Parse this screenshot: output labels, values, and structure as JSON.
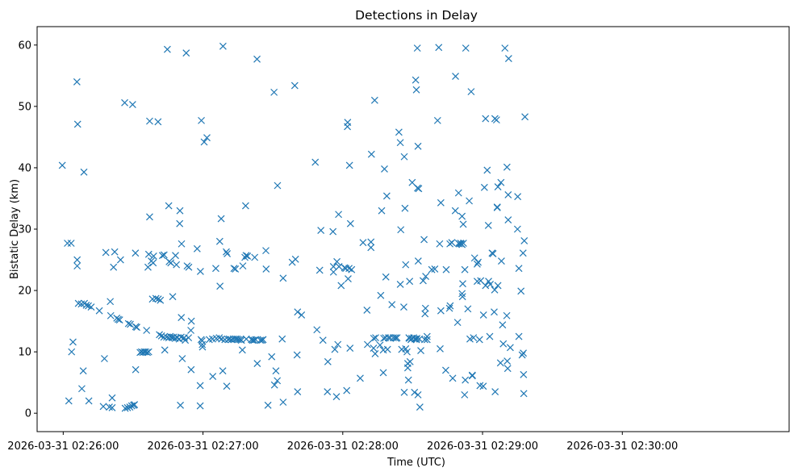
{
  "chart_data": {
    "type": "scatter",
    "title": "Detections in Delay",
    "xlabel": "Time (UTC)",
    "ylabel": "Bistatic Delay (km)",
    "marker": "x",
    "color": "#1f77b4",
    "x_unit": "time (UTC), seconds after 2026-03-31 02:25:00",
    "xlim": [
      48.8,
      371.6
    ],
    "ylim": [
      -3,
      63
    ],
    "xticks": [
      {
        "value": 60,
        "label": "2026-03-31 02:26:00"
      },
      {
        "value": 120,
        "label": "2026-03-31 02:27:00"
      },
      {
        "value": 180,
        "label": "2026-03-31 02:28:00"
      },
      {
        "value": 240,
        "label": "2026-03-31 02:29:00"
      },
      {
        "value": 300,
        "label": "2026-03-31 02:30:00"
      }
    ],
    "yticks": [
      0,
      10,
      20,
      30,
      40,
      50,
      60
    ],
    "grid": false,
    "points": [
      [
        59.6,
        40.4
      ],
      [
        61.8,
        27.7
      ],
      [
        63.4,
        27.7
      ],
      [
        62.4,
        2.0
      ],
      [
        63.6,
        10.0
      ],
      [
        64.2,
        11.6
      ],
      [
        65.9,
        54.0
      ],
      [
        66.2,
        47.1
      ],
      [
        66.0,
        25.0
      ],
      [
        66.0,
        24.0
      ],
      [
        66.5,
        17.9
      ],
      [
        67.8,
        17.8
      ],
      [
        69.1,
        17.9
      ],
      [
        69.9,
        17.6
      ],
      [
        70.8,
        17.5
      ],
      [
        72.0,
        17.3
      ],
      [
        68.0,
        4.0
      ],
      [
        68.6,
        6.9
      ],
      [
        68.9,
        39.3
      ],
      [
        71.0,
        2.0
      ],
      [
        75.5,
        16.7
      ],
      [
        77.2,
        1.1
      ],
      [
        77.7,
        8.9
      ],
      [
        78.3,
        26.2
      ],
      [
        79.8,
        1.0
      ],
      [
        81.0,
        0.9
      ],
      [
        80.2,
        18.2
      ],
      [
        80.4,
        15.9
      ],
      [
        81.0,
        2.5
      ],
      [
        81.6,
        23.8
      ],
      [
        82.1,
        26.3
      ],
      [
        83.0,
        15.5
      ],
      [
        83.6,
        15.3
      ],
      [
        84.2,
        15.2
      ],
      [
        84.6,
        25.0
      ],
      [
        86.4,
        50.6
      ],
      [
        86.6,
        0.8
      ],
      [
        87.6,
        0.9
      ],
      [
        88.0,
        14.6
      ],
      [
        88.6,
        1.0
      ],
      [
        88.8,
        14.5
      ],
      [
        89.8,
        50.3
      ],
      [
        89.4,
        1.2
      ],
      [
        90.2,
        1.3
      ],
      [
        90.6,
        1.4
      ],
      [
        91.1,
        14.1
      ],
      [
        91.1,
        7.1
      ],
      [
        91.0,
        26.1
      ],
      [
        91.6,
        14.0
      ],
      [
        93.0,
        9.9
      ],
      [
        93.6,
        10.0
      ],
      [
        94.2,
        9.9
      ],
      [
        94.8,
        10.0
      ],
      [
        95.4,
        10.0
      ],
      [
        95.8,
        13.5
      ],
      [
        96.1,
        9.9
      ],
      [
        96.7,
        10.0
      ],
      [
        96.4,
        23.8
      ],
      [
        96.7,
        25.9
      ],
      [
        97.1,
        47.6
      ],
      [
        97.1,
        32.0
      ],
      [
        97.8,
        24.8
      ],
      [
        98.3,
        18.6
      ],
      [
        98.6,
        24.5
      ],
      [
        98.8,
        25.6
      ],
      [
        99.8,
        18.7
      ],
      [
        100.7,
        47.5
      ],
      [
        100.8,
        18.6
      ],
      [
        101.3,
        12.8
      ],
      [
        102.2,
        12.6
      ],
      [
        101.7,
        18.4
      ],
      [
        102.6,
        25.7
      ],
      [
        103.2,
        12.4
      ],
      [
        103.3,
        25.8
      ],
      [
        103.6,
        10.3
      ],
      [
        104.4,
        12.4
      ],
      [
        104.7,
        59.3
      ],
      [
        105.3,
        12.3
      ],
      [
        105.3,
        33.8
      ],
      [
        105.5,
        24.7
      ],
      [
        105.9,
        12.5
      ],
      [
        106.2,
        24.5
      ],
      [
        106.5,
        12.4
      ],
      [
        107.0,
        12.3
      ],
      [
        107.0,
        19.0
      ],
      [
        107.4,
        12.4
      ],
      [
        108.2,
        25.7
      ],
      [
        108.1,
        12.2
      ],
      [
        108.6,
        24.2
      ],
      [
        108.9,
        12.3
      ],
      [
        109.8,
        12.1
      ],
      [
        110.0,
        30.9
      ],
      [
        110.1,
        33.0
      ],
      [
        110.3,
        1.3
      ],
      [
        110.6,
        12.4
      ],
      [
        110.7,
        15.6
      ],
      [
        110.8,
        27.6
      ],
      [
        111.1,
        8.9
      ],
      [
        111.6,
        12.2
      ],
      [
        112.4,
        11.9
      ],
      [
        112.0,
        12.3
      ],
      [
        112.8,
        58.7
      ],
      [
        113.2,
        24.0
      ],
      [
        113.9,
        23.8
      ],
      [
        113.8,
        12.3
      ],
      [
        114.8,
        13.5
      ],
      [
        115.0,
        15.0
      ],
      [
        114.9,
        7.1
      ],
      [
        117.5,
        26.8
      ],
      [
        118.9,
        23.1
      ],
      [
        119.3,
        47.7
      ],
      [
        118.8,
        4.5
      ],
      [
        118.8,
        1.2
      ],
      [
        119.2,
        12.0
      ],
      [
        119.6,
        11.8
      ],
      [
        119.7,
        11.2
      ],
      [
        119.8,
        10.8
      ],
      [
        120.5,
        44.2
      ],
      [
        121.7,
        44.9
      ],
      [
        122.7,
        12.0
      ],
      [
        124.1,
        12.1
      ],
      [
        124.2,
        6.0
      ],
      [
        125.5,
        23.6
      ],
      [
        125.7,
        12.2
      ],
      [
        127.2,
        28.0
      ],
      [
        127.0,
        12.3
      ],
      [
        127.3,
        20.7
      ],
      [
        127.8,
        31.7
      ],
      [
        128.0,
        12.1
      ],
      [
        128.6,
        59.8
      ],
      [
        128.5,
        6.9
      ],
      [
        129.4,
        12.0
      ],
      [
        130.0,
        26.3
      ],
      [
        130.4,
        26.0
      ],
      [
        130.2,
        4.4
      ],
      [
        130.8,
        12.0
      ],
      [
        131.3,
        12.1
      ],
      [
        132.2,
        12.0
      ],
      [
        133.3,
        23.6
      ],
      [
        133.9,
        23.5
      ],
      [
        133.0,
        12.1
      ],
      [
        133.9,
        12.1
      ],
      [
        134.6,
        12.1
      ],
      [
        135.2,
        12.0
      ],
      [
        136.0,
        12.0
      ],
      [
        136.5,
        11.9
      ],
      [
        136.9,
        10.3
      ],
      [
        137.1,
        24.0
      ],
      [
        138.5,
        25.7
      ],
      [
        138.0,
        25.4
      ],
      [
        138.3,
        33.8
      ],
      [
        138.6,
        12.1
      ],
      [
        139.1,
        25.6
      ],
      [
        140.8,
        12.0
      ],
      [
        141.3,
        11.9
      ],
      [
        141.9,
        11.9
      ],
      [
        142.6,
        12.0
      ],
      [
        143.3,
        8.1
      ],
      [
        142.2,
        25.4
      ],
      [
        143.2,
        57.7
      ],
      [
        144.6,
        11.9
      ],
      [
        145.3,
        11.9
      ],
      [
        145.8,
        12.0
      ],
      [
        147.0,
        26.5
      ],
      [
        147.1,
        23.5
      ],
      [
        147.9,
        1.3
      ],
      [
        150.5,
        52.3
      ],
      [
        149.5,
        9.2
      ],
      [
        150.7,
        4.6
      ],
      [
        151.3,
        6.9
      ],
      [
        151.9,
        5.3
      ],
      [
        152.0,
        37.1
      ],
      [
        154.0,
        12.1
      ],
      [
        154.4,
        22.0
      ],
      [
        154.4,
        1.8
      ],
      [
        158.3,
        24.6
      ],
      [
        159.7,
        25.1
      ],
      [
        159.4,
        53.4
      ],
      [
        160.6,
        16.5
      ],
      [
        160.4,
        9.5
      ],
      [
        160.6,
        3.5
      ],
      [
        162.3,
        16.0
      ],
      [
        168.2,
        40.9
      ],
      [
        168.9,
        13.6
      ],
      [
        170.1,
        23.3
      ],
      [
        170.6,
        29.8
      ],
      [
        171.5,
        11.9
      ],
      [
        173.4,
        3.5
      ],
      [
        173.6,
        8.4
      ],
      [
        175.8,
        29.6
      ],
      [
        176.0,
        23.9
      ],
      [
        176.0,
        23.0
      ],
      [
        176.6,
        10.4
      ],
      [
        177.5,
        24.7
      ],
      [
        177.3,
        2.7
      ],
      [
        177.9,
        11.2
      ],
      [
        178.2,
        32.4
      ],
      [
        178.4,
        23.9
      ],
      [
        179.3,
        20.8
      ],
      [
        180.8,
        23.7
      ],
      [
        181.3,
        23.6
      ],
      [
        181.7,
        3.7
      ],
      [
        182.1,
        47.4
      ],
      [
        182.0,
        46.7
      ],
      [
        182.7,
        23.6
      ],
      [
        182.3,
        21.9
      ],
      [
        182.9,
        40.4
      ],
      [
        183.1,
        10.6
      ],
      [
        183.3,
        30.9
      ],
      [
        183.8,
        23.4
      ],
      [
        187.5,
        5.7
      ],
      [
        188.7,
        27.8
      ],
      [
        190.4,
        16.8
      ],
      [
        190.6,
        11.2
      ],
      [
        192.1,
        27.9
      ],
      [
        192.1,
        27.0
      ],
      [
        192.3,
        42.2
      ],
      [
        193.2,
        10.6
      ],
      [
        193.3,
        12.2
      ],
      [
        193.7,
        51.0
      ],
      [
        193.9,
        9.7
      ],
      [
        194.1,
        12.3
      ],
      [
        196.0,
        11.1
      ],
      [
        196.3,
        19.2
      ],
      [
        196.7,
        33.0
      ],
      [
        197.4,
        6.6
      ],
      [
        197.4,
        10.3
      ],
      [
        197.6,
        12.2
      ],
      [
        197.9,
        39.8
      ],
      [
        198.5,
        22.2
      ],
      [
        198.9,
        35.4
      ],
      [
        198.3,
        12.3
      ],
      [
        199.2,
        10.4
      ],
      [
        199.6,
        12.3
      ],
      [
        200.3,
        12.3
      ],
      [
        201.1,
        17.7
      ],
      [
        201.7,
        12.3
      ],
      [
        202.5,
        12.3
      ],
      [
        202.9,
        12.2
      ],
      [
        203.3,
        12.3
      ],
      [
        204.1,
        45.8
      ],
      [
        204.7,
        44.1
      ],
      [
        204.9,
        29.9
      ],
      [
        204.7,
        21.0
      ],
      [
        205.3,
        10.4
      ],
      [
        206.2,
        17.3
      ],
      [
        206.7,
        33.4
      ],
      [
        206.4,
        3.4
      ],
      [
        206.4,
        41.8
      ],
      [
        207.0,
        24.2
      ],
      [
        207.0,
        10.5
      ],
      [
        207.6,
        10.0
      ],
      [
        207.9,
        8.1
      ],
      [
        207.9,
        7.4
      ],
      [
        208.2,
        5.4
      ],
      [
        208.4,
        12.3
      ],
      [
        208.6,
        12.2
      ],
      [
        208.7,
        21.5
      ],
      [
        208.9,
        8.4
      ],
      [
        209.8,
        37.6
      ],
      [
        209.3,
        12.0
      ],
      [
        209.6,
        12.2
      ],
      [
        210.4,
        12.3
      ],
      [
        211.0,
        12.1
      ],
      [
        211.3,
        54.3
      ],
      [
        211.6,
        52.7
      ],
      [
        210.8,
        3.4
      ],
      [
        211.6,
        12.0
      ],
      [
        211.8,
        12.2
      ],
      [
        212.0,
        59.5
      ],
      [
        212.1,
        36.7
      ],
      [
        212.3,
        3.0
      ],
      [
        212.3,
        43.5
      ],
      [
        212.4,
        24.8
      ],
      [
        212.6,
        36.6
      ],
      [
        212.9,
        12.1
      ],
      [
        213.1,
        1.0
      ],
      [
        213.5,
        10.2
      ],
      [
        214.5,
        21.6
      ],
      [
        214.9,
        28.3
      ],
      [
        215.5,
        17.1
      ],
      [
        215.2,
        12.0
      ],
      [
        215.3,
        16.2
      ],
      [
        215.6,
        22.3
      ],
      [
        216.2,
        12.0
      ],
      [
        216.2,
        12.5
      ],
      [
        218.2,
        23.4
      ],
      [
        219.5,
        23.5
      ],
      [
        220.7,
        47.7
      ],
      [
        221.2,
        59.6
      ],
      [
        221.6,
        27.6
      ],
      [
        221.8,
        10.5
      ],
      [
        222.1,
        34.3
      ],
      [
        222.1,
        16.7
      ],
      [
        224.4,
        23.4
      ],
      [
        224.2,
        7.0
      ],
      [
        225.8,
        17.1
      ],
      [
        226.1,
        17.5
      ],
      [
        226.0,
        27.6
      ],
      [
        226.8,
        27.8
      ],
      [
        227.2,
        5.7
      ],
      [
        228.3,
        33.0
      ],
      [
        228.4,
        54.9
      ],
      [
        229.3,
        14.8
      ],
      [
        229.7,
        35.9
      ],
      [
        229.7,
        27.7
      ],
      [
        230.0,
        27.6
      ],
      [
        230.6,
        27.7
      ],
      [
        230.8,
        27.6
      ],
      [
        231.2,
        27.5
      ],
      [
        231.2,
        32.1
      ],
      [
        231.2,
        19.5
      ],
      [
        231.4,
        19.0
      ],
      [
        231.7,
        30.8
      ],
      [
        231.5,
        21.1
      ],
      [
        231.8,
        27.7
      ],
      [
        232.4,
        23.4
      ],
      [
        232.3,
        3.0
      ],
      [
        232.8,
        59.5
      ],
      [
        232.6,
        5.4
      ],
      [
        233.7,
        17.0
      ],
      [
        234.3,
        34.6
      ],
      [
        234.6,
        12.1
      ],
      [
        235.1,
        52.4
      ],
      [
        235.6,
        6.2
      ],
      [
        235.6,
        6.1
      ],
      [
        236.1,
        12.3
      ],
      [
        236.6,
        25.3
      ],
      [
        237.7,
        24.3
      ],
      [
        237.7,
        21.5
      ],
      [
        238.1,
        24.6
      ],
      [
        238.7,
        12.0
      ],
      [
        238.9,
        4.5
      ],
      [
        239.2,
        21.6
      ],
      [
        240.3,
        4.4
      ],
      [
        240.4,
        16.0
      ],
      [
        240.8,
        36.8
      ],
      [
        241.3,
        48.0
      ],
      [
        242.0,
        39.6
      ],
      [
        241.3,
        20.8
      ],
      [
        242.5,
        30.6
      ],
      [
        242.6,
        21.5
      ],
      [
        243.1,
        12.5
      ],
      [
        243.3,
        21.0
      ],
      [
        244.1,
        26.1
      ],
      [
        244.5,
        26.0
      ],
      [
        245.3,
        48.0
      ],
      [
        245.0,
        16.5
      ],
      [
        245.2,
        20.1
      ],
      [
        245.4,
        3.5
      ],
      [
        246.0,
        47.8
      ],
      [
        246.3,
        33.6
      ],
      [
        246.3,
        33.5
      ],
      [
        246.6,
        20.8
      ],
      [
        246.6,
        36.9
      ],
      [
        247.7,
        8.2
      ],
      [
        247.9,
        37.6
      ],
      [
        248.1,
        24.8
      ],
      [
        248.6,
        14.4
      ],
      [
        248.9,
        11.3
      ],
      [
        249.6,
        59.5
      ],
      [
        250.5,
        40.1
      ],
      [
        250.4,
        15.9
      ],
      [
        250.6,
        8.5
      ],
      [
        250.8,
        7.3
      ],
      [
        251.0,
        31.5
      ],
      [
        251.2,
        57.8
      ],
      [
        251.0,
        35.6
      ],
      [
        251.9,
        10.7
      ],
      [
        255.1,
        35.3
      ],
      [
        255.6,
        23.6
      ],
      [
        255.0,
        30.0
      ],
      [
        255.6,
        12.5
      ],
      [
        256.5,
        19.9
      ],
      [
        257.0,
        9.5
      ],
      [
        257.4,
        26.1
      ],
      [
        257.5,
        9.8
      ],
      [
        257.6,
        6.3
      ],
      [
        257.7,
        3.2
      ],
      [
        257.9,
        28.1
      ],
      [
        258.2,
        48.3
      ]
    ]
  }
}
